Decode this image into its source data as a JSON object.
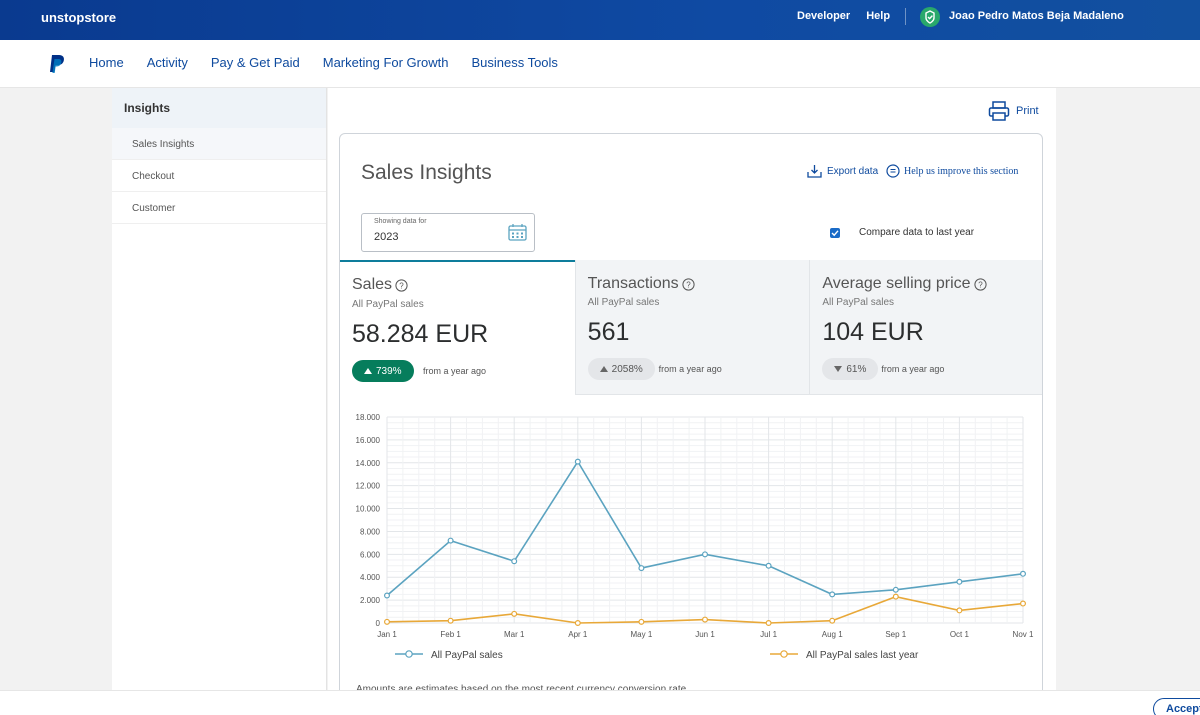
{
  "topbar": {
    "store_name": "unstopstore",
    "links": [
      "Developer",
      "Help"
    ],
    "user_name": "Joao Pedro Matos Beja Madaleno"
  },
  "nav": {
    "items": [
      "Home",
      "Activity",
      "Pay & Get Paid",
      "Marketing For Growth",
      "Business Tools"
    ]
  },
  "sidebar": {
    "heading": "Insights",
    "items": [
      "Sales Insights",
      "Checkout",
      "Customer"
    ],
    "active": "Sales Insights"
  },
  "main": {
    "print_label": "Print",
    "title": "Sales Insights",
    "export_label": "Export data",
    "improve_label": "Help us improve this section",
    "date_label": "Showing data for",
    "date_value": "2023",
    "compare_label": "Compare data to last year",
    "compare_checked": true,
    "tiles": [
      {
        "title": "Sales",
        "subtitle": "All PayPal sales",
        "value": "58.284 EUR",
        "change": "739%",
        "direction": "up",
        "from": "from a year ago"
      },
      {
        "title": "Transactions",
        "subtitle": "All PayPal sales",
        "value": "561",
        "change": "2058%",
        "direction": "up",
        "from": "from a year ago"
      },
      {
        "title": "Average selling price",
        "subtitle": "All PayPal sales",
        "value": "104 EUR",
        "change": "61%",
        "direction": "down",
        "from": "from a year ago"
      }
    ],
    "disclaimer": "Amounts are estimates based on the most recent currency conversion rate"
  },
  "colors": {
    "brand_blue": "#0e4a9e",
    "series_current": "#5ba3c0",
    "series_last_year": "#e8a838",
    "pill_green": "#067d5c"
  },
  "chart_data": {
    "type": "line",
    "categories": [
      "Jan 1",
      "Feb 1",
      "Mar 1",
      "Apr 1",
      "May 1",
      "Jun 1",
      "Jul 1",
      "Aug 1",
      "Sep 1",
      "Oct 1",
      "Nov 1"
    ],
    "y_ticks": [
      "0",
      "2.000",
      "4.000",
      "6.000",
      "8.000",
      "10.000",
      "12.000",
      "14.000",
      "16.000",
      "18.000"
    ],
    "ylim": [
      0,
      18000
    ],
    "grid": true,
    "legend_position": "bottom",
    "series": [
      {
        "name": "All PayPal sales",
        "values": [
          2400,
          7200,
          5400,
          14100,
          4800,
          6000,
          5000,
          2500,
          2900,
          3600,
          4300
        ]
      },
      {
        "name": "All PayPal sales last year",
        "values": [
          100,
          200,
          800,
          0,
          100,
          300,
          0,
          200,
          2300,
          1100,
          1700
        ]
      }
    ]
  },
  "cookie": {
    "accept_label": "Accept"
  }
}
